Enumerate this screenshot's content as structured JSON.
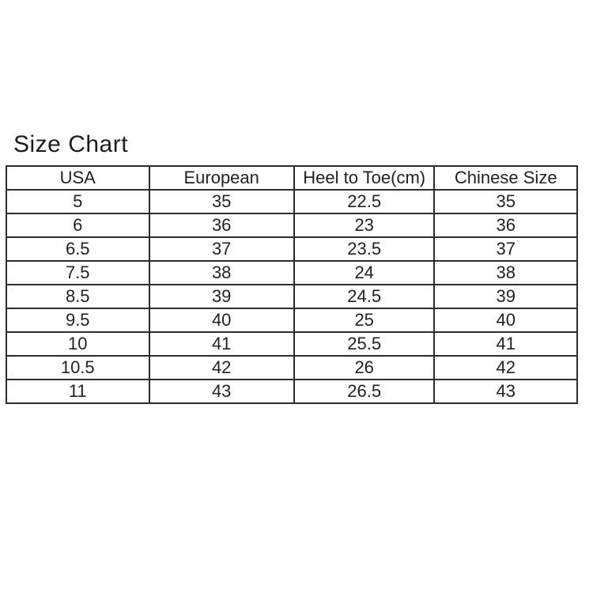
{
  "page": {
    "background_color": "#ffffff",
    "text_color": "#222222",
    "border_color": "#2d2d2d"
  },
  "chart_data": {
    "type": "table",
    "title": "Size Chart",
    "columns": [
      "USA",
      "European",
      "Heel to Toe(cm)",
      "Chinese Size"
    ],
    "rows": [
      [
        "5",
        "35",
        "22.5",
        "35"
      ],
      [
        "6",
        "36",
        "23",
        "36"
      ],
      [
        "6.5",
        "37",
        "23.5",
        "37"
      ],
      [
        "7.5",
        "38",
        "24",
        "38"
      ],
      [
        "8.5",
        "39",
        "24.5",
        "39"
      ],
      [
        "9.5",
        "40",
        "25",
        "40"
      ],
      [
        "10",
        "41",
        "25.5",
        "41"
      ],
      [
        "10.5",
        "42",
        "26",
        "42"
      ],
      [
        "11",
        "43",
        "26.5",
        "43"
      ]
    ],
    "column_widths_percent": [
      25.0,
      25.4,
      24.6,
      25.0
    ]
  }
}
